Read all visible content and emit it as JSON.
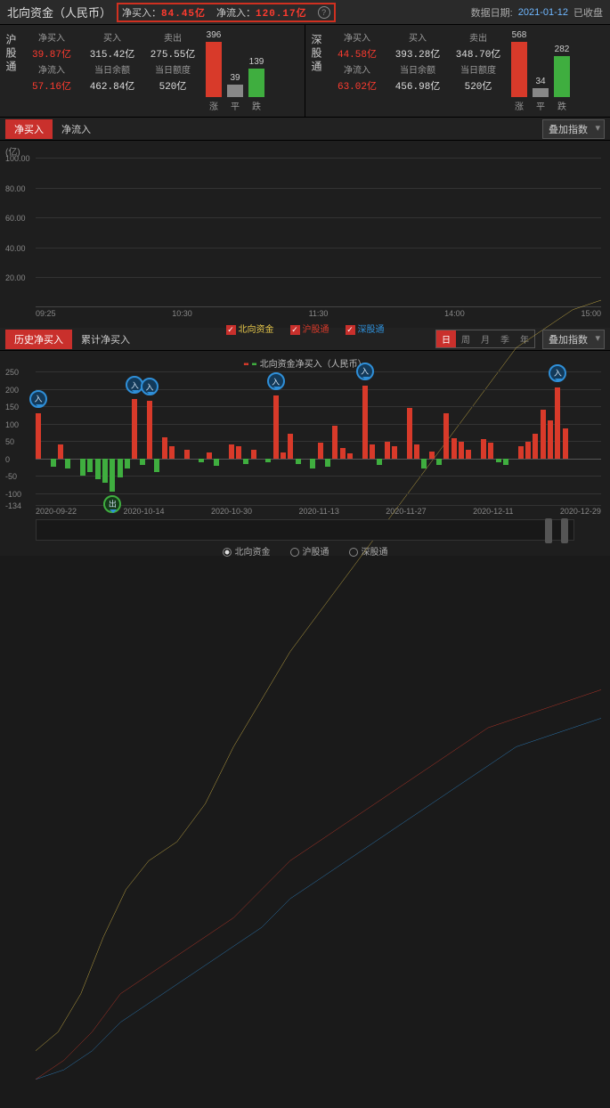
{
  "header": {
    "title": "北向资金（人民币）",
    "net_buy_label": "净买入：",
    "net_buy_value": "84.45亿",
    "net_flow_label": "净流入：",
    "net_flow_value": "120.17亿",
    "date_label": "数据日期:",
    "date_value": "2021-01-12",
    "status": "已收盘"
  },
  "panels": [
    {
      "name": "沪股通",
      "row1": {
        "h": [
          "净买入",
          "买入",
          "卖出"
        ],
        "v": [
          "39.87亿",
          "315.42亿",
          "275.55亿"
        ],
        "cls": [
          "red",
          "plain",
          "plain"
        ]
      },
      "row2": {
        "h": [
          "净流入",
          "当日余额",
          "当日额度"
        ],
        "v": [
          "57.16亿",
          "462.84亿",
          "520亿"
        ],
        "cls": [
          "red",
          "plain",
          "plain"
        ]
      },
      "bars": [
        {
          "n": "396",
          "h": 80,
          "color": "bar-red",
          "lab": "涨"
        },
        {
          "n": "39",
          "h": 14,
          "color": "bar-gray",
          "lab": "平"
        },
        {
          "n": "139",
          "h": 32,
          "color": "bar-green",
          "lab": "跌"
        }
      ]
    },
    {
      "name": "深股通",
      "row1": {
        "h": [
          "净买入",
          "买入",
          "卖出"
        ],
        "v": [
          "44.58亿",
          "393.28亿",
          "348.70亿"
        ],
        "cls": [
          "red",
          "plain",
          "plain"
        ]
      },
      "row2": {
        "h": [
          "净流入",
          "当日余额",
          "当日额度"
        ],
        "v": [
          "63.02亿",
          "456.98亿",
          "520亿"
        ],
        "cls": [
          "red",
          "plain",
          "plain"
        ]
      },
      "bars": [
        {
          "n": "568",
          "h": 86,
          "color": "bar-red",
          "lab": "涨"
        },
        {
          "n": "34",
          "h": 10,
          "color": "bar-gray",
          "lab": "平"
        },
        {
          "n": "282",
          "h": 46,
          "color": "bar-green",
          "lab": "跌"
        }
      ]
    }
  ],
  "section2": {
    "tabs": [
      "净买入",
      "净流入"
    ],
    "active_tab": 0,
    "select": "叠加指数",
    "y_unit": "(亿)",
    "y_ticks": [
      100.0,
      80.0,
      60.0,
      40.0,
      20.0
    ],
    "x_ticks": [
      "09:25",
      "10:30",
      "11:30",
      "14:00",
      "15:00"
    ],
    "legend": [
      {
        "label": "北向资金",
        "color": "#e8c84a",
        "on": true
      },
      {
        "label": "沪股通",
        "color": "#d83a2a",
        "on": true
      },
      {
        "label": "深股通",
        "color": "#2f8fd8",
        "on": true
      }
    ],
    "lines": {
      "yellow": [
        [
          0,
          6
        ],
        [
          4,
          8
        ],
        [
          8,
          12
        ],
        [
          12,
          18
        ],
        [
          16,
          23
        ],
        [
          20,
          26
        ],
        [
          25,
          28
        ],
        [
          30,
          32
        ],
        [
          35,
          38
        ],
        [
          40,
          43
        ],
        [
          45,
          48
        ],
        [
          50,
          52
        ],
        [
          55,
          56
        ],
        [
          60,
          60
        ],
        [
          65,
          64
        ],
        [
          70,
          68
        ],
        [
          75,
          72
        ],
        [
          80,
          76
        ],
        [
          85,
          80
        ],
        [
          90,
          82
        ],
        [
          95,
          84
        ],
        [
          100,
          85
        ]
      ],
      "red": [
        [
          0,
          3
        ],
        [
          5,
          5
        ],
        [
          10,
          8
        ],
        [
          15,
          12
        ],
        [
          20,
          14
        ],
        [
          25,
          16
        ],
        [
          30,
          18
        ],
        [
          35,
          20
        ],
        [
          40,
          23
        ],
        [
          45,
          26
        ],
        [
          50,
          28
        ],
        [
          55,
          30
        ],
        [
          60,
          32
        ],
        [
          65,
          34
        ],
        [
          70,
          36
        ],
        [
          75,
          38
        ],
        [
          80,
          40
        ],
        [
          85,
          41
        ],
        [
          90,
          42
        ],
        [
          95,
          43
        ],
        [
          100,
          44
        ]
      ],
      "blue": [
        [
          0,
          3
        ],
        [
          5,
          4
        ],
        [
          10,
          6
        ],
        [
          15,
          9
        ],
        [
          20,
          11
        ],
        [
          25,
          13
        ],
        [
          30,
          15
        ],
        [
          35,
          17
        ],
        [
          40,
          19
        ],
        [
          45,
          22
        ],
        [
          50,
          24
        ],
        [
          55,
          26
        ],
        [
          60,
          28
        ],
        [
          65,
          30
        ],
        [
          70,
          32
        ],
        [
          75,
          34
        ],
        [
          80,
          36
        ],
        [
          85,
          38
        ],
        [
          90,
          39
        ],
        [
          95,
          40
        ],
        [
          100,
          41
        ]
      ]
    },
    "ylim": [
      0,
      100
    ]
  },
  "section3": {
    "tabs": [
      "历史净买入",
      "累计净买入"
    ],
    "active_tab": 0,
    "range_toggle": [
      "日",
      "周",
      "月",
      "季",
      "年"
    ],
    "range_active": 0,
    "select": "叠加指数",
    "legend_text": "北向资金净买入（人民币）",
    "y_ticks": [
      250,
      200,
      150,
      100,
      50,
      0,
      -50,
      -100,
      -134
    ],
    "x_ticks": [
      "2020-09-22",
      "2020-10-14",
      "2020-10-30",
      "2020-11-13",
      "2020-11-27",
      "2020-12-11",
      "2020-12-29"
    ],
    "ylim": [
      -134,
      250
    ],
    "bars": [
      {
        "x": 0,
        "v": 130,
        "c": "r",
        "b": "入"
      },
      {
        "x": 2,
        "v": -25,
        "c": "g"
      },
      {
        "x": 3,
        "v": 40,
        "c": "r"
      },
      {
        "x": 4,
        "v": -30,
        "c": "g"
      },
      {
        "x": 6,
        "v": -50,
        "c": "g"
      },
      {
        "x": 7,
        "v": -40,
        "c": "g"
      },
      {
        "x": 8,
        "v": -60,
        "c": "g"
      },
      {
        "x": 9,
        "v": -70,
        "c": "g"
      },
      {
        "x": 10,
        "v": -95,
        "c": "g",
        "b": "出",
        "bd": 1
      },
      {
        "x": 11,
        "v": -55,
        "c": "g"
      },
      {
        "x": 12,
        "v": -30,
        "c": "g"
      },
      {
        "x": 13,
        "v": 170,
        "c": "r",
        "b": "入"
      },
      {
        "x": 14,
        "v": -20,
        "c": "g"
      },
      {
        "x": 15,
        "v": 165,
        "c": "r",
        "b": "入"
      },
      {
        "x": 16,
        "v": -40,
        "c": "g"
      },
      {
        "x": 17,
        "v": 60,
        "c": "r"
      },
      {
        "x": 18,
        "v": 35,
        "c": "r"
      },
      {
        "x": 20,
        "v": 25,
        "c": "r"
      },
      {
        "x": 22,
        "v": -10,
        "c": "g"
      },
      {
        "x": 23,
        "v": 18,
        "c": "r"
      },
      {
        "x": 24,
        "v": -22,
        "c": "g"
      },
      {
        "x": 26,
        "v": 40,
        "c": "r"
      },
      {
        "x": 27,
        "v": 35,
        "c": "r"
      },
      {
        "x": 28,
        "v": -15,
        "c": "g"
      },
      {
        "x": 29,
        "v": 25,
        "c": "r"
      },
      {
        "x": 31,
        "v": -10,
        "c": "g"
      },
      {
        "x": 32,
        "v": 180,
        "c": "r",
        "b": "入"
      },
      {
        "x": 33,
        "v": 18,
        "c": "r"
      },
      {
        "x": 34,
        "v": 70,
        "c": "r"
      },
      {
        "x": 35,
        "v": -15,
        "c": "g"
      },
      {
        "x": 37,
        "v": -28,
        "c": "g"
      },
      {
        "x": 38,
        "v": 45,
        "c": "r"
      },
      {
        "x": 39,
        "v": -25,
        "c": "g"
      },
      {
        "x": 40,
        "v": 95,
        "c": "r"
      },
      {
        "x": 41,
        "v": 30,
        "c": "r"
      },
      {
        "x": 42,
        "v": 15,
        "c": "r"
      },
      {
        "x": 44,
        "v": 210,
        "c": "r",
        "b": "入"
      },
      {
        "x": 45,
        "v": 40,
        "c": "r"
      },
      {
        "x": 46,
        "v": -20,
        "c": "g"
      },
      {
        "x": 47,
        "v": 48,
        "c": "r"
      },
      {
        "x": 48,
        "v": 35,
        "c": "r"
      },
      {
        "x": 50,
        "v": 145,
        "c": "r"
      },
      {
        "x": 51,
        "v": 40,
        "c": "r"
      },
      {
        "x": 52,
        "v": -30,
        "c": "g"
      },
      {
        "x": 53,
        "v": 20,
        "c": "r"
      },
      {
        "x": 54,
        "v": -18,
        "c": "g"
      },
      {
        "x": 55,
        "v": 130,
        "c": "r"
      },
      {
        "x": 56,
        "v": 58,
        "c": "r"
      },
      {
        "x": 57,
        "v": 48,
        "c": "r"
      },
      {
        "x": 58,
        "v": 25,
        "c": "r"
      },
      {
        "x": 60,
        "v": 55,
        "c": "r"
      },
      {
        "x": 61,
        "v": 45,
        "c": "r"
      },
      {
        "x": 62,
        "v": -10,
        "c": "g"
      },
      {
        "x": 63,
        "v": -18,
        "c": "g"
      },
      {
        "x": 65,
        "v": 35,
        "c": "r"
      },
      {
        "x": 66,
        "v": 48,
        "c": "r"
      },
      {
        "x": 67,
        "v": 70,
        "c": "r"
      },
      {
        "x": 68,
        "v": 140,
        "c": "r"
      },
      {
        "x": 69,
        "v": 110,
        "c": "r"
      },
      {
        "x": 70,
        "v": 205,
        "c": "r",
        "b": "入"
      },
      {
        "x": 71,
        "v": 85,
        "c": "r"
      }
    ],
    "bar_slots": 72,
    "radios": [
      "北向资金",
      "沪股通",
      "深股通"
    ],
    "radio_active": 0
  }
}
